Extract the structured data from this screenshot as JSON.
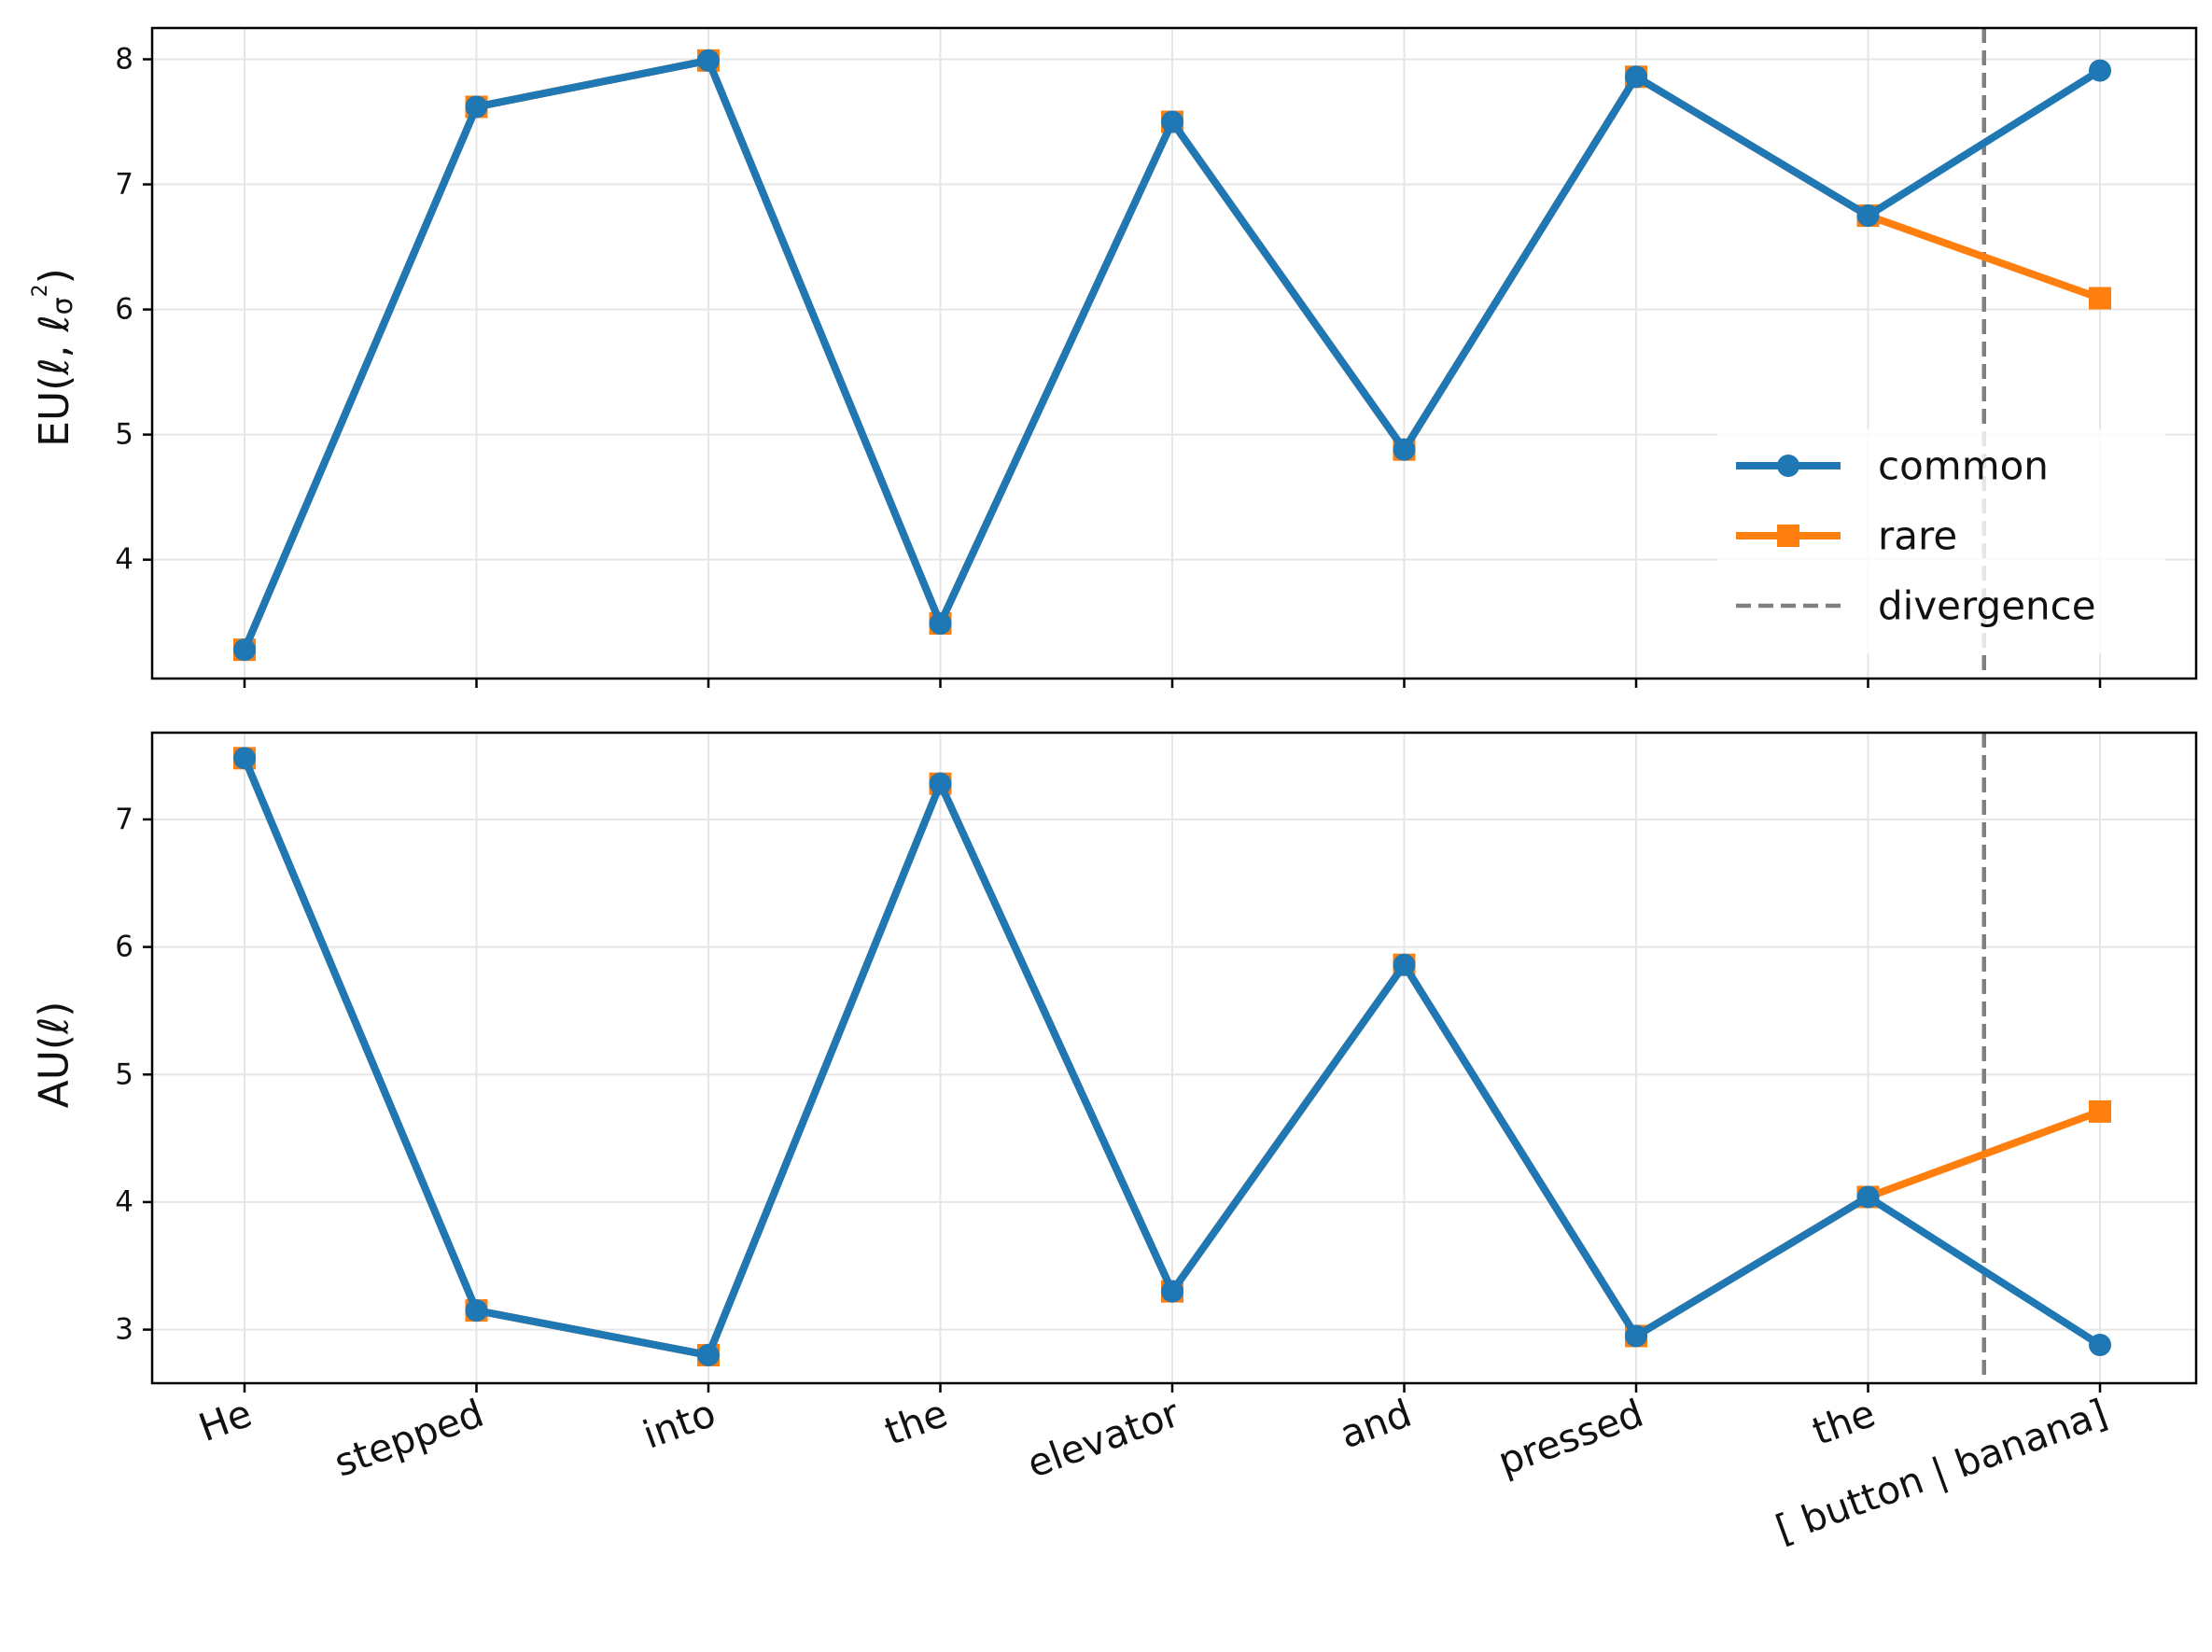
{
  "chart_data": {
    "type": "line",
    "categories": [
      "He",
      "stepped",
      "into",
      "the",
      "elevator",
      "and",
      "pressed",
      "the",
      "[ button |  banana]"
    ],
    "colors": {
      "common": "#1f77b4",
      "rare": "#ff7f0e",
      "divergence": "#808080",
      "grid": "#e6e6e6"
    },
    "legend": {
      "placement": "lower-right of top panel",
      "entries": [
        {
          "label": "common",
          "marker": "circle",
          "color": "#1f77b4",
          "style": "solid"
        },
        {
          "label": "rare",
          "marker": "square",
          "color": "#ff7f0e",
          "style": "solid"
        },
        {
          "label": "divergence",
          "color": "#808080",
          "style": "dashed"
        }
      ]
    },
    "divergence_x": 7.5,
    "grid": true,
    "panels": [
      {
        "ylabel": "EU(ℓ, ℓσ²)",
        "ylabel_main": "EU(ℓ, ℓ",
        "ylabel_sub": "σ",
        "ylabel_sup": "2",
        "ylabel_close": ")",
        "ylim": [
          3.05,
          8.25
        ],
        "yticks": [
          4,
          5,
          6,
          7,
          8
        ],
        "series": [
          {
            "name": "common",
            "values": [
              3.28,
              7.62,
              7.99,
              3.49,
              7.5,
              4.88,
              7.86,
              6.75,
              7.91
            ]
          },
          {
            "name": "rare",
            "values": [
              3.28,
              7.62,
              7.99,
              3.49,
              7.5,
              4.88,
              7.86,
              6.75,
              6.09
            ]
          }
        ]
      },
      {
        "ylabel": "AU(ℓ)",
        "ylim": [
          2.58,
          7.68
        ],
        "yticks": [
          3,
          4,
          5,
          6,
          7
        ],
        "series": [
          {
            "name": "common",
            "values": [
              7.48,
              3.15,
              2.8,
              7.28,
              3.3,
              5.86,
              2.95,
              4.04,
              2.88
            ]
          },
          {
            "name": "rare",
            "values": [
              7.48,
              3.15,
              2.8,
              7.28,
              3.3,
              5.86,
              2.95,
              4.04,
              4.71
            ]
          }
        ]
      }
    ]
  }
}
